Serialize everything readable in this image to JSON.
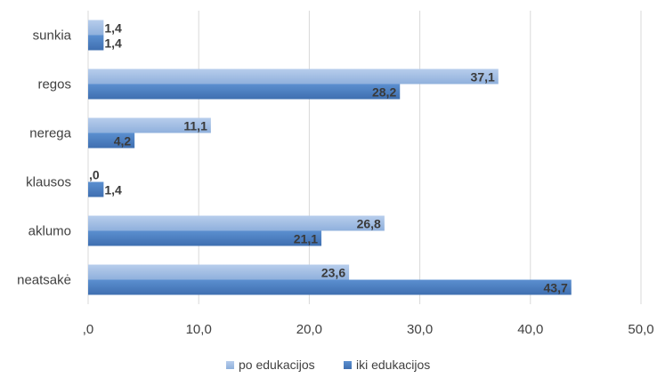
{
  "chart_data": {
    "type": "bar",
    "orientation": "horizontal",
    "categories": [
      "sunkia",
      "regos",
      "nerega",
      "klausos",
      "aklumo",
      "neatsakė"
    ],
    "series": [
      {
        "name": "po edukacijos",
        "values": [
          1.4,
          37.1,
          11.1,
          0,
          26.8,
          23.6
        ],
        "labels": [
          "1,4",
          "37,1",
          "11,1",
          ",0",
          "26,8",
          "23,6"
        ],
        "color": "#9dbbe3"
      },
      {
        "name": "iki edukacijos",
        "values": [
          1.4,
          28.2,
          4.2,
          1.4,
          21.1,
          43.7
        ],
        "labels": [
          "1,4",
          "28,2",
          "4,2",
          "1,4",
          "21,1",
          "43,7"
        ],
        "color": "#4f81bd"
      }
    ],
    "xlim": [
      0,
      50
    ],
    "x_ticks": [
      ",0",
      "10,0",
      "20,0",
      "30,0",
      "40,0",
      "50,0"
    ],
    "x_tick_values": [
      0,
      10,
      20,
      30,
      40,
      50
    ],
    "grid": true,
    "legend": "bottom"
  }
}
